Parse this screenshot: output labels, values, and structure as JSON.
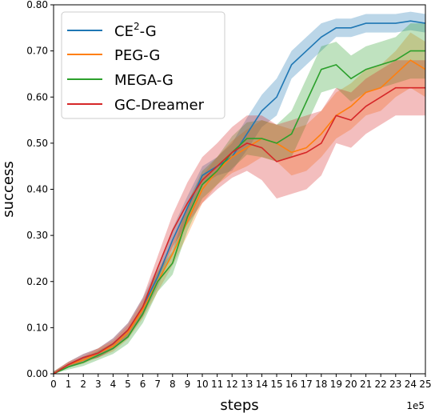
{
  "chart_data": {
    "type": "line",
    "xlabel": "steps",
    "ylabel": "success",
    "x_offset_label": "1e5",
    "xlim": [
      0,
      25
    ],
    "ylim": [
      0,
      0.8
    ],
    "x_ticks": [
      0,
      1,
      2,
      3,
      4,
      5,
      6,
      7,
      8,
      9,
      10,
      11,
      12,
      13,
      14,
      15,
      16,
      17,
      18,
      19,
      20,
      21,
      22,
      23,
      24,
      25
    ],
    "x_tick_labels": [
      "0",
      "1",
      "2",
      "3",
      "4",
      "5",
      "6",
      "7",
      "8",
      "9",
      "10",
      "11",
      "12",
      "13",
      "14",
      "15",
      "16",
      "17",
      "18",
      "19",
      "20",
      "21",
      "22",
      "23",
      "24",
      "25"
    ],
    "y_ticks": [
      0,
      0.1,
      0.2,
      0.3,
      0.4,
      0.5,
      0.6,
      0.7,
      0.8
    ],
    "y_tick_labels": [
      "0.00",
      "0.10",
      "0.20",
      "0.30",
      "0.40",
      "0.50",
      "0.60",
      "0.70",
      "0.80"
    ],
    "grid": false,
    "legend_position": "top-left",
    "x": [
      0,
      1,
      2,
      3,
      4,
      5,
      6,
      7,
      8,
      9,
      10,
      11,
      12,
      13,
      14,
      15,
      16,
      17,
      18,
      19,
      20,
      21,
      22,
      23,
      24,
      25
    ],
    "series": [
      {
        "label_main": "CE",
        "label_sup": "2",
        "label_tail": "-G",
        "color": "#1f77b4",
        "values": [
          0.0,
          0.02,
          0.035,
          0.045,
          0.065,
          0.095,
          0.145,
          0.21,
          0.29,
          0.36,
          0.43,
          0.45,
          0.47,
          0.52,
          0.57,
          0.6,
          0.67,
          0.7,
          0.73,
          0.75,
          0.75,
          0.76,
          0.76,
          0.76,
          0.765,
          0.76
        ],
        "band": [
          0.005,
          0.006,
          0.008,
          0.01,
          0.012,
          0.015,
          0.02,
          0.022,
          0.025,
          0.025,
          0.02,
          0.02,
          0.03,
          0.035,
          0.035,
          0.04,
          0.03,
          0.03,
          0.03,
          0.02,
          0.02,
          0.02,
          0.02,
          0.02,
          0.02,
          0.02
        ]
      },
      {
        "label_main": "PEG-G",
        "label_sup": "",
        "label_tail": "",
        "color": "#ff7f0e",
        "values": [
          0.0,
          0.02,
          0.03,
          0.045,
          0.06,
          0.09,
          0.14,
          0.2,
          0.26,
          0.33,
          0.4,
          0.44,
          0.47,
          0.49,
          0.51,
          0.5,
          0.48,
          0.49,
          0.52,
          0.56,
          0.58,
          0.61,
          0.62,
          0.65,
          0.68,
          0.66
        ],
        "band": [
          0.005,
          0.006,
          0.008,
          0.01,
          0.012,
          0.015,
          0.02,
          0.022,
          0.025,
          0.03,
          0.03,
          0.03,
          0.035,
          0.04,
          0.04,
          0.04,
          0.05,
          0.05,
          0.05,
          0.05,
          0.05,
          0.05,
          0.05,
          0.05,
          0.06,
          0.06
        ]
      },
      {
        "label_main": "MEGA-G",
        "label_sup": "",
        "label_tail": "",
        "color": "#2ca02c",
        "values": [
          0.0,
          0.015,
          0.025,
          0.04,
          0.055,
          0.08,
          0.13,
          0.2,
          0.24,
          0.34,
          0.41,
          0.44,
          0.48,
          0.51,
          0.51,
          0.5,
          0.52,
          0.59,
          0.66,
          0.67,
          0.64,
          0.66,
          0.67,
          0.68,
          0.7,
          0.7
        ],
        "band": [
          0.005,
          0.006,
          0.008,
          0.01,
          0.012,
          0.015,
          0.02,
          0.022,
          0.025,
          0.03,
          0.03,
          0.03,
          0.035,
          0.035,
          0.04,
          0.04,
          0.05,
          0.05,
          0.05,
          0.05,
          0.05,
          0.05,
          0.05,
          0.05,
          0.06,
          0.06
        ]
      },
      {
        "label_main": "GC-Dreamer",
        "label_sup": "",
        "label_tail": "",
        "color": "#d62728",
        "values": [
          0.0,
          0.02,
          0.035,
          0.045,
          0.065,
          0.095,
          0.145,
          0.23,
          0.31,
          0.37,
          0.42,
          0.45,
          0.48,
          0.5,
          0.49,
          0.46,
          0.47,
          0.48,
          0.5,
          0.56,
          0.55,
          0.58,
          0.6,
          0.62,
          0.62,
          0.62
        ],
        "band": [
          0.005,
          0.006,
          0.008,
          0.01,
          0.012,
          0.015,
          0.02,
          0.025,
          0.035,
          0.045,
          0.05,
          0.05,
          0.055,
          0.06,
          0.07,
          0.08,
          0.08,
          0.08,
          0.07,
          0.06,
          0.06,
          0.06,
          0.06,
          0.06,
          0.06,
          0.06
        ]
      }
    ]
  }
}
